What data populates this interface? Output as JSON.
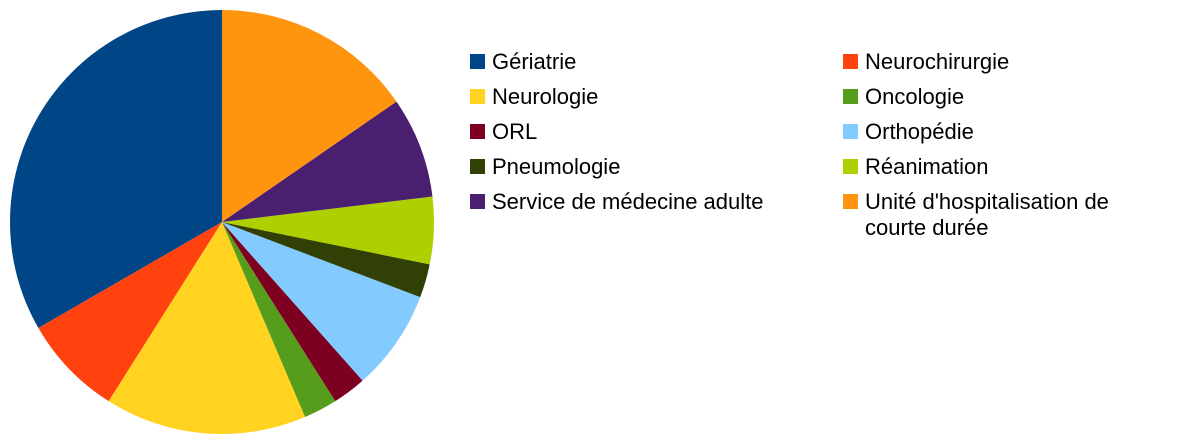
{
  "chart_data": {
    "type": "pie",
    "categories": [
      "Gériatrie",
      "Neurochirurgie",
      "Neurologie",
      "Oncologie",
      "ORL",
      "Orthopédie",
      "Pneumologie",
      "Réanimation",
      "Service de médecine adulte",
      "Unité d'hospitalisation de courte durée"
    ],
    "values": [
      13,
      3,
      6,
      1,
      1,
      3,
      1,
      2,
      3,
      6
    ],
    "colors": [
      "#004586",
      "#ff420e",
      "#ffd320",
      "#579d1c",
      "#7e0021",
      "#83caff",
      "#314004",
      "#aecf00",
      "#4b1f6f",
      "#ff950e"
    ],
    "legend": "right"
  }
}
